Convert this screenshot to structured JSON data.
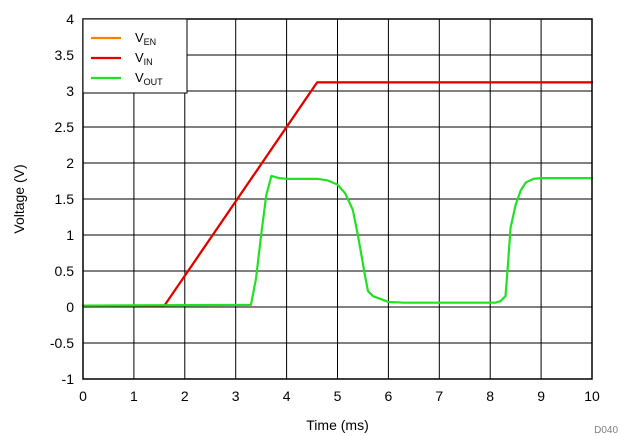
{
  "chart_data": {
    "type": "line",
    "xlabel": "Time (ms)",
    "ylabel": "Voltage (V)",
    "xlim": [
      0,
      10
    ],
    "ylim": [
      -1,
      4
    ],
    "x_ticks": [
      0,
      1,
      2,
      3,
      4,
      5,
      6,
      7,
      8,
      9,
      10
    ],
    "x_tick_labels": [
      "0",
      "1",
      "2",
      "3",
      "4",
      "5",
      "6",
      "7",
      "8",
      "9",
      "10"
    ],
    "y_ticks": [
      -1,
      -0.5,
      0,
      0.5,
      1,
      1.5,
      2,
      2.5,
      3,
      3.5,
      4
    ],
    "y_tick_labels": [
      "-1",
      "-0.5",
      "0",
      "0.5",
      "1",
      "1.5",
      "2",
      "2.5",
      "3",
      "3.5",
      "4"
    ],
    "grid": true,
    "legend_position": "top-left",
    "series": [
      {
        "name": "V",
        "subscript": "EN",
        "color": "#FF8000",
        "x": [
          1.6,
          4.6,
          10
        ],
        "y": [
          0.02,
          3.12,
          3.12
        ]
      },
      {
        "name": "V",
        "subscript": "IN",
        "color": "#E00000",
        "x": [
          0,
          1.6,
          4.6,
          10
        ],
        "y": [
          0.02,
          0.02,
          3.12,
          3.12
        ]
      },
      {
        "name": "V",
        "subscript": "OUT",
        "color": "#22E022",
        "x": [
          0,
          3.3,
          3.4,
          3.5,
          3.6,
          3.7,
          3.85,
          4.0,
          4.3,
          4.6,
          4.8,
          5.0,
          5.15,
          5.3,
          5.4,
          5.5,
          5.55,
          5.6,
          5.7,
          5.85,
          6.0,
          6.3,
          7.0,
          8.1,
          8.2,
          8.3,
          8.35,
          8.4,
          8.5,
          8.6,
          8.7,
          8.85,
          9.0,
          9.5,
          10.0
        ],
        "y": [
          0.02,
          0.03,
          0.4,
          1.0,
          1.55,
          1.82,
          1.79,
          1.78,
          1.78,
          1.78,
          1.76,
          1.7,
          1.58,
          1.35,
          1.0,
          0.6,
          0.4,
          0.22,
          0.15,
          0.11,
          0.07,
          0.06,
          0.06,
          0.06,
          0.08,
          0.15,
          0.6,
          1.1,
          1.42,
          1.62,
          1.73,
          1.78,
          1.79,
          1.79,
          1.79
        ]
      }
    ],
    "annotation": "D040"
  }
}
